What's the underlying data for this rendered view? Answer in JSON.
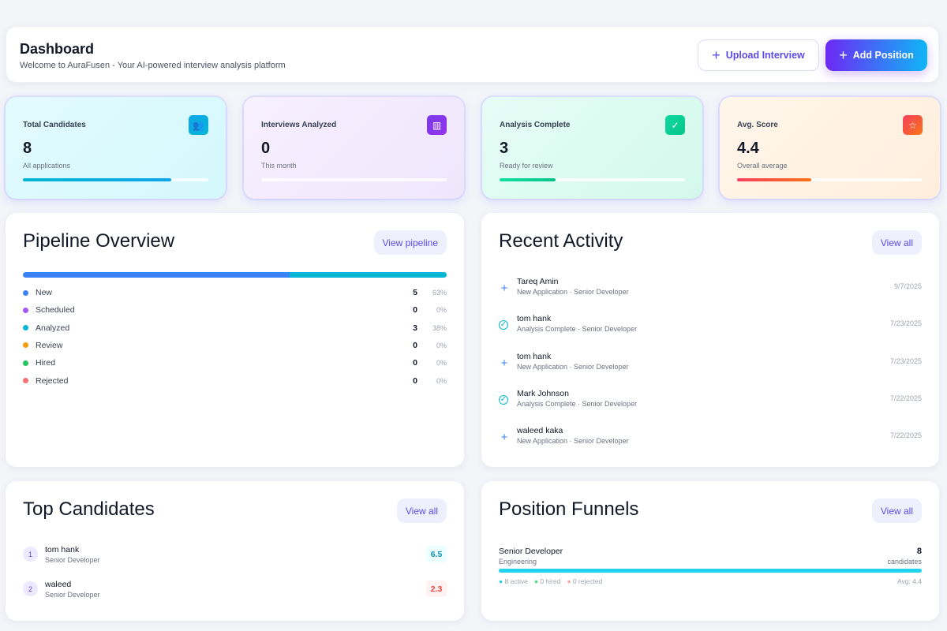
{
  "header": {
    "title": "Dashboard",
    "subtitle": "Welcome to AuraFusen - Your AI-powered interview analysis platform",
    "upload_label": "Upload Interview",
    "add_label": "Add Position"
  },
  "stats": [
    {
      "label": "Total Candidates",
      "value": "8",
      "sub": "All applications",
      "icon": "users-icon",
      "progress": 80,
      "color": "#06b6d4"
    },
    {
      "label": "Interviews Analyzed",
      "value": "0",
      "sub": "This month",
      "icon": "chart-icon",
      "progress": 0,
      "color": "#7c3aed"
    },
    {
      "label": "Analysis Complete",
      "value": "3",
      "sub": "Ready for review",
      "icon": "check-circle-icon",
      "progress": 30,
      "color": "#10d9a0"
    },
    {
      "label": "Avg. Score",
      "value": "4.4",
      "sub": "Overall average",
      "icon": "star-icon",
      "progress": 40,
      "color": "#f43f5e"
    }
  ],
  "pipeline": {
    "title": "Pipeline Overview",
    "button": "View pipeline",
    "bar": [
      {
        "percent": 63,
        "color": "#3b82f6"
      },
      {
        "percent": 37,
        "color": "#06b6d4"
      }
    ],
    "stages": [
      {
        "name": "New",
        "count": "5",
        "percent": "63%",
        "color": "#3b82f6"
      },
      {
        "name": "Scheduled",
        "count": "0",
        "percent": "0%",
        "color": "#a855f7"
      },
      {
        "name": "Analyzed",
        "count": "3",
        "percent": "38%",
        "color": "#06b6d4"
      },
      {
        "name": "Review",
        "count": "0",
        "percent": "0%",
        "color": "#f59e0b"
      },
      {
        "name": "Hired",
        "count": "0",
        "percent": "0%",
        "color": "#22c55e"
      },
      {
        "name": "Rejected",
        "count": "0",
        "percent": "0%",
        "color": "#f87171"
      }
    ]
  },
  "activity": {
    "title": "Recent Activity",
    "button": "View all",
    "items": [
      {
        "name": "Tareq Amin",
        "detail": "New Application · Senior Developer",
        "date": "9/7/2025",
        "icon": "plus-icon"
      },
      {
        "name": "tom hank",
        "detail": "Analysis Complete · Senior Developer",
        "date": "7/23/2025",
        "icon": "check-circle-icon"
      },
      {
        "name": "tom hank",
        "detail": "New Application · Senior Developer",
        "date": "7/23/2025",
        "icon": "plus-icon"
      },
      {
        "name": "Mark Johnson",
        "detail": "Analysis Complete · Senior Developer",
        "date": "7/22/2025",
        "icon": "check-circle-icon"
      },
      {
        "name": "waleed kaka",
        "detail": "New Application · Senior Developer",
        "date": "7/22/2025",
        "icon": "plus-icon"
      }
    ]
  },
  "top": {
    "title": "Top Candidates",
    "button": "View all",
    "items": [
      {
        "rank": "1",
        "name": "tom hank",
        "role": "Senior Developer",
        "score": "6.5",
        "color": "#0891b2",
        "bg": "#ecfeff"
      },
      {
        "rank": "2",
        "name": "waleed",
        "role": "Senior Developer",
        "score": "2.3",
        "color": "#ef4444",
        "bg": "#fef2f2"
      }
    ]
  },
  "funnels": {
    "title": "Position Funnels",
    "button": "View all",
    "items": [
      {
        "position": "Senior Developer",
        "dept": "Engineering",
        "count": "8",
        "count_label": "candidates",
        "active": "8 active",
        "hired": "0 hired",
        "rejected": "0 rejected",
        "avg": "Avg: 4.4",
        "fill": 100
      }
    ]
  }
}
